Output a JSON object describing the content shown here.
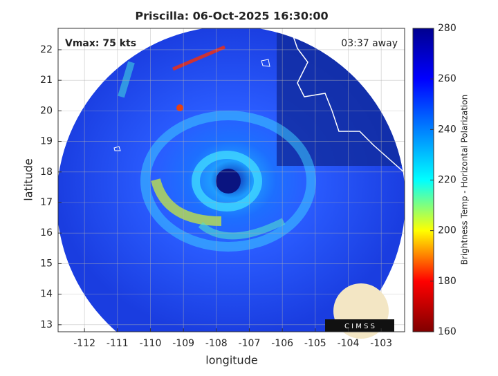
{
  "chart_data": {
    "type": "image",
    "title": "Priscilla: 06-Oct-2025 16:30:00",
    "annotations": [
      "Vmax: 75 kts",
      "03:37 away"
    ],
    "x_label": "longitude",
    "y_label": "latitude",
    "xlim": [
      -112.8,
      -102.29
    ],
    "ylim": [
      12.77,
      22.7
    ],
    "xticks": [
      -112,
      -111,
      -110,
      -109,
      -108,
      -107,
      -106,
      -105,
      -104,
      -103
    ],
    "yticks": [
      13,
      14,
      15,
      16,
      17,
      18,
      19,
      20,
      21,
      22
    ],
    "grid": true,
    "colormap": "jet",
    "colorbar": {
      "label": "Brightness Temp - Horizontal Polarization",
      "lim": [
        160,
        280
      ],
      "ticks": [
        160,
        180,
        200,
        220,
        240,
        260,
        280
      ]
    },
    "logo_text": "C I M S S"
  }
}
